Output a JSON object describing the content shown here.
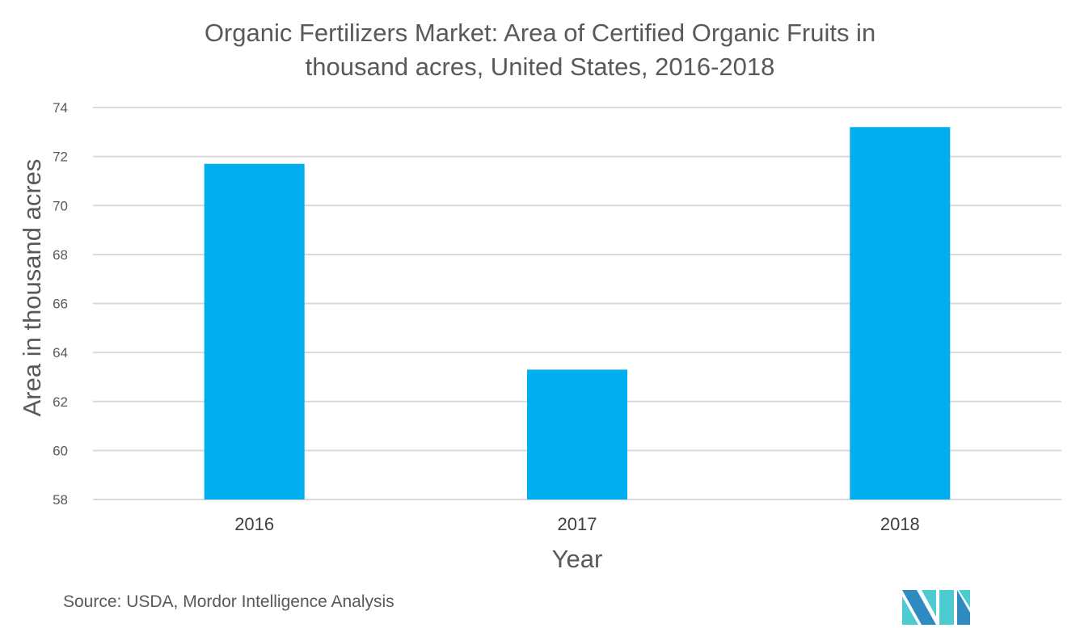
{
  "chart_data": {
    "type": "bar",
    "title": "Organic Fertilizers Market: Area of Certified Organic Fruits in thousand acres, United States, 2016-2018",
    "title_lines": [
      "Organic Fertilizers Market: Area of Certified Organic Fruits in",
      "thousand acres, United States, 2016-2018"
    ],
    "categories": [
      "2016",
      "2017",
      "2018"
    ],
    "values": [
      71.7,
      63.3,
      73.2
    ],
    "xlabel": "Year",
    "ylabel": "Area in thousand acres",
    "ylim": [
      58,
      74
    ],
    "yticks": [
      58,
      60,
      62,
      64,
      66,
      68,
      70,
      72,
      74
    ],
    "grid": true,
    "bar_color": "#00AEEF"
  },
  "source": "Source: USDA, Mordor Intelligence Analysis",
  "logo": {
    "text": "Mordor Intelligence",
    "colors": [
      "#2E8BC0",
      "#4CCCD0"
    ]
  }
}
